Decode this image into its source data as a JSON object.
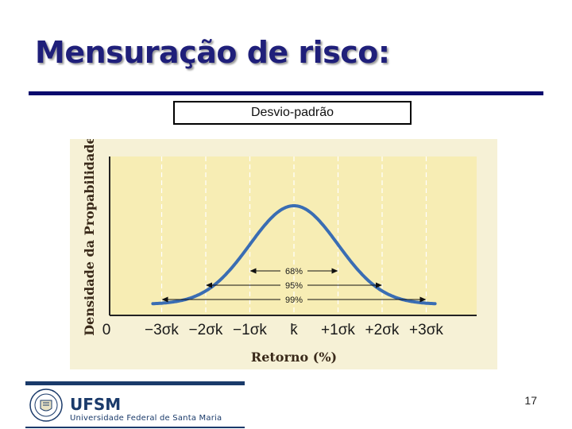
{
  "slide": {
    "title": "Mensuração de risco:",
    "caption": "Desvio-padrão",
    "page_number": "17"
  },
  "footer": {
    "logo_name": "UFSM",
    "logo_subtitle": "Universidade Federal de Santa Maria"
  },
  "colors": {
    "title": "#1f1f7a",
    "rule": "#0b0b6e",
    "chart_bg": "#f6f1d6",
    "plot_bg": "#f7edb4",
    "curve": "#3a6db3"
  },
  "chart_data": {
    "type": "line",
    "title": "",
    "xlabel": "Retorno (%)",
    "ylabel": "Densidade da Propabilidade",
    "x_ticks": [
      "0",
      "−3σk",
      "−2σk",
      "−1σk",
      "k̄",
      "+1σk",
      "+2σk",
      "+3σk"
    ],
    "xlim": [
      -3,
      3
    ],
    "series": [
      {
        "distribution": "normal",
        "mean": 0,
        "std": 1
      }
    ],
    "intervals": [
      {
        "label": "68%",
        "from": -1,
        "to": 1
      },
      {
        "label": "95%",
        "from": -2,
        "to": 2
      },
      {
        "label": "99%",
        "from": -3,
        "to": 3
      }
    ],
    "grid": true,
    "legend": "none"
  }
}
